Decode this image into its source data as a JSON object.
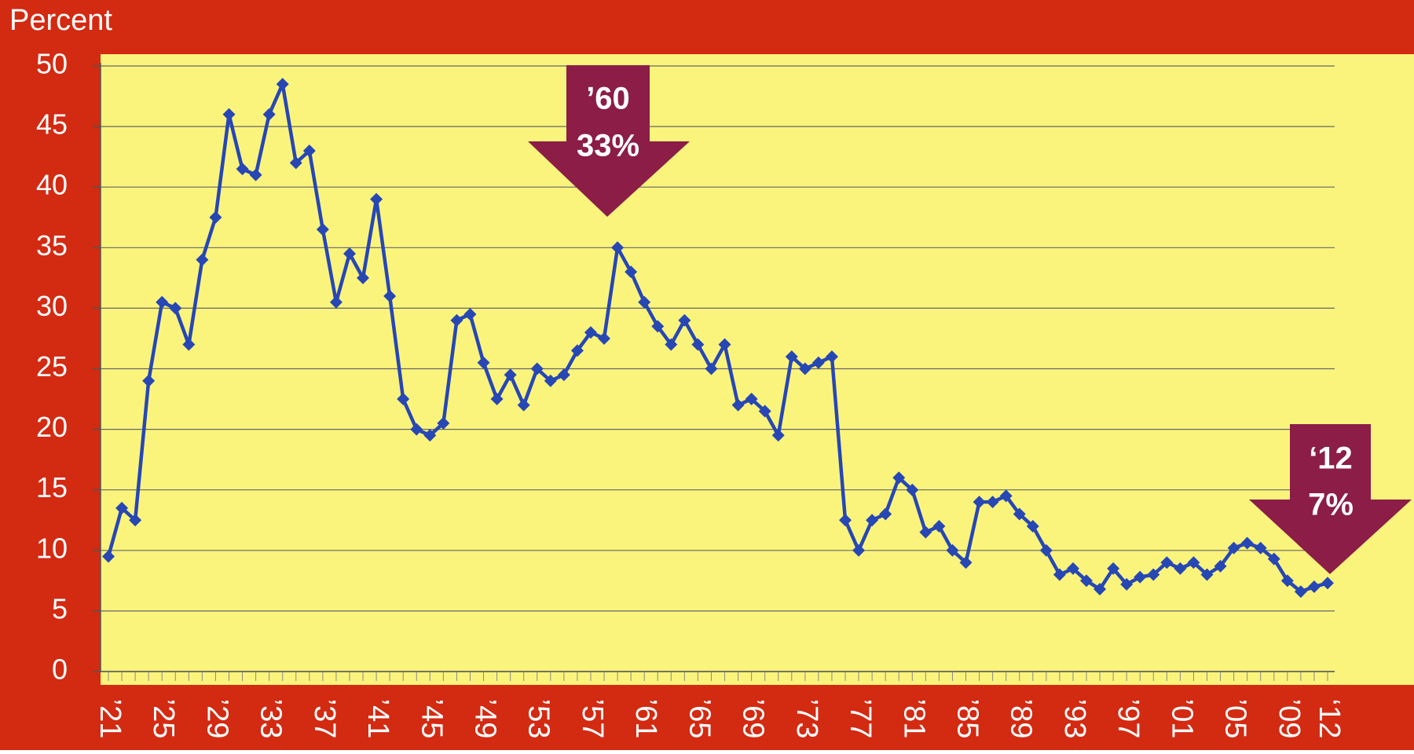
{
  "chart_data": {
    "type": "line",
    "y_label": "Percent",
    "categories": [
      "’21",
      null,
      null,
      null,
      "’25",
      null,
      null,
      null,
      "’29",
      null,
      null,
      null,
      "’33",
      null,
      null,
      null,
      "’37",
      null,
      null,
      null,
      "’41",
      null,
      null,
      null,
      "’45",
      null,
      null,
      null,
      "’49",
      null,
      null,
      null,
      "’53",
      null,
      null,
      null,
      "’57",
      null,
      null,
      null,
      "’61",
      null,
      null,
      null,
      "’65",
      null,
      null,
      null,
      "’69",
      null,
      null,
      null,
      "’73",
      null,
      null,
      null,
      "’77",
      null,
      null,
      null,
      "’81",
      null,
      null,
      null,
      "’85",
      null,
      null,
      null,
      "’89",
      null,
      null,
      null,
      "’93",
      null,
      null,
      null,
      "’97",
      null,
      null,
      null,
      "’01",
      null,
      null,
      null,
      "’05",
      null,
      null,
      null,
      "’09",
      null,
      null,
      "‘12"
    ],
    "values": [
      9.5,
      13.5,
      12.5,
      24,
      30.5,
      30,
      27,
      34,
      37.5,
      46,
      41.5,
      41,
      46,
      48.5,
      42,
      43,
      36.5,
      30.5,
      34.5,
      32.5,
      39,
      31,
      22.5,
      20,
      19.5,
      20.5,
      29,
      29.5,
      25.5,
      22.5,
      24.5,
      22,
      25,
      24,
      24.5,
      26.5,
      28,
      27.5,
      35,
      33,
      30.5,
      28.5,
      27,
      29,
      27,
      25,
      27,
      22,
      22.5,
      21.5,
      19.5,
      26,
      25,
      25.5,
      26,
      12.5,
      10,
      12.5,
      13,
      16,
      15,
      11.5,
      12,
      10,
      9,
      14,
      14,
      14.5,
      13,
      12,
      10,
      8,
      8.5,
      7.5,
      6.8,
      8.5,
      7.2,
      7.8,
      8,
      9,
      8.5,
      9,
      8,
      8.7,
      10.2,
      10.6,
      10.2,
      9.3,
      7.5,
      6.6,
      7,
      7.3
    ],
    "color": "#2747b4",
    "ylim": [
      0,
      50
    ],
    "yticks": [
      0,
      5,
      10,
      15,
      20,
      25,
      30,
      35,
      40,
      45,
      50
    ],
    "grid": true,
    "annotations": [
      [
        "’60",
        "33%"
      ],
      [
        "‘12",
        "7%"
      ]
    ]
  }
}
